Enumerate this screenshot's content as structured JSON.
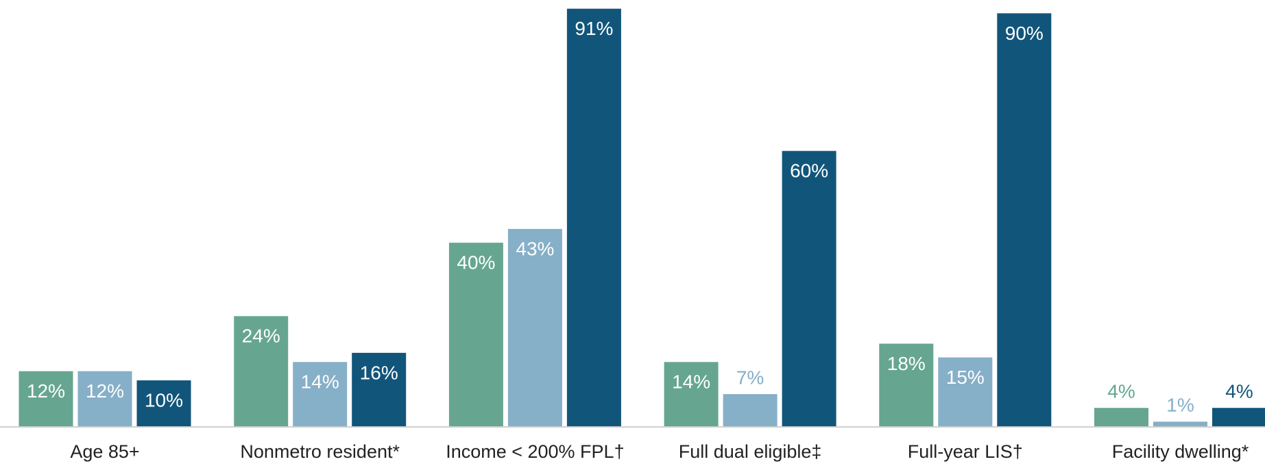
{
  "chart_data": {
    "type": "bar",
    "categories": [
      "Age 85+",
      "Nonmetro resident*",
      "Income < 200% FPL†",
      "Full dual eligible‡",
      "Full-year LIS†",
      "Facility dwelling*"
    ],
    "series": [
      {
        "color": "#66a690",
        "values": [
          12,
          24,
          40,
          14,
          18,
          4
        ],
        "value_labels": [
          "12%",
          "24%",
          "40%",
          "14%",
          "18%",
          "4%"
        ]
      },
      {
        "color": "#86afc8",
        "values": [
          12,
          14,
          43,
          7,
          15,
          1
        ],
        "value_labels": [
          "12%",
          "14%",
          "43%",
          "7%",
          "15%",
          "1%"
        ]
      },
      {
        "color": "#12557a",
        "values": [
          10,
          16,
          91,
          60,
          90,
          4
        ],
        "value_labels": [
          "10%",
          "16%",
          "91%",
          "60%",
          "90%",
          "4%"
        ]
      }
    ],
    "ylim": [
      0,
      92
    ]
  }
}
